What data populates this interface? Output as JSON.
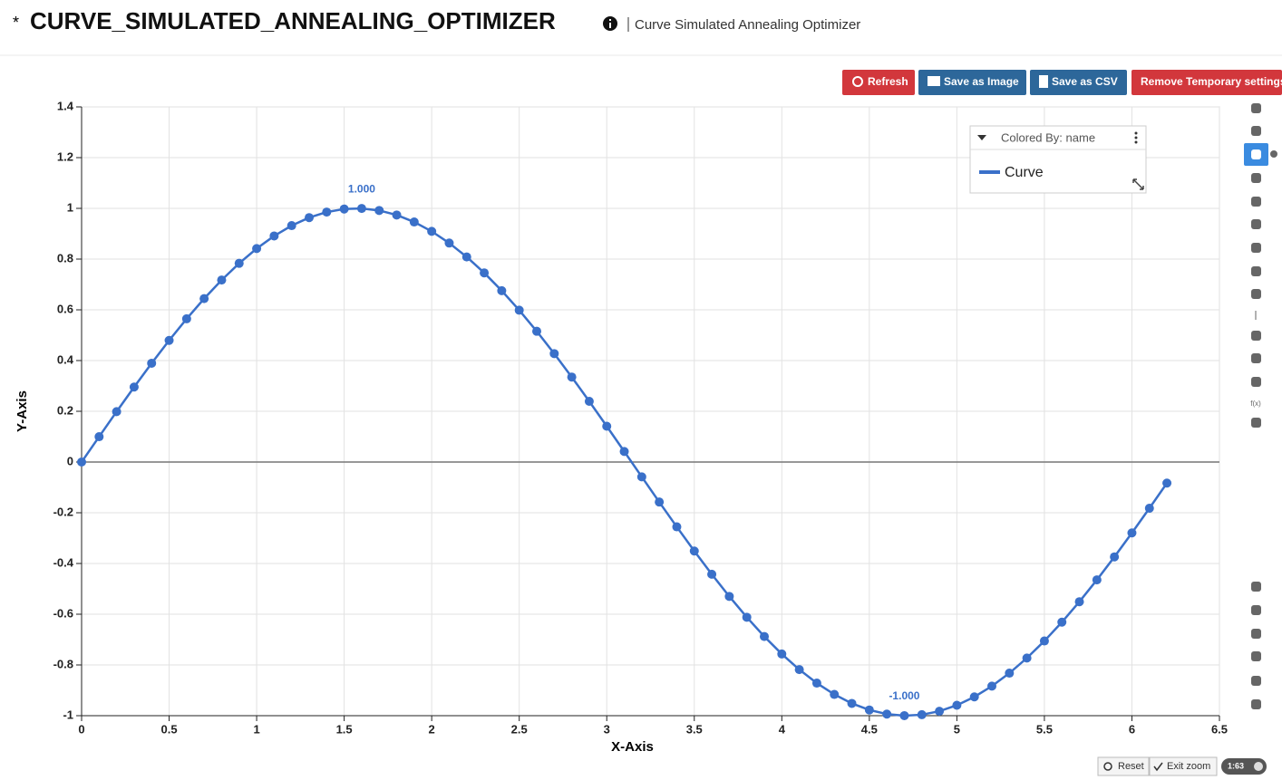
{
  "header": {
    "marker": "*",
    "title": "CURVE_SIMULATED_ANNEALING_OPTIMIZER",
    "subtitle": "Curve Simulated Annealing Optimizer"
  },
  "buttons": [
    "Refresh",
    "Save as Image",
    "Save as CSV",
    "Remove Temporary settings"
  ],
  "toolbar": {
    "fx_label": "f(x)"
  },
  "footer": {
    "reset": "Reset",
    "exit_zoom": "Exit zoom",
    "badge": "1:63"
  },
  "chart_data": {
    "type": "line",
    "x_label": "X-Axis",
    "y_label": "Y-Axis",
    "legend_title": "Colored By: name",
    "legend": "top-right",
    "x": [
      0,
      0.1,
      0.2,
      0.3,
      0.4,
      0.5,
      0.6,
      0.7,
      0.8,
      0.9,
      1,
      1.1,
      1.2,
      1.3,
      1.4,
      1.5,
      1.6,
      1.7,
      1.8,
      1.9,
      2,
      2.1,
      2.2,
      2.3,
      2.4,
      2.5,
      2.6,
      2.7,
      2.8,
      2.9,
      3,
      3.1,
      3.2,
      3.3,
      3.4,
      3.5,
      3.6,
      3.7,
      3.8,
      3.9,
      4,
      4.1,
      4.2,
      4.3,
      4.4,
      4.5,
      4.6,
      4.7,
      4.8,
      4.9,
      5,
      5.1,
      5.2,
      5.3,
      5.4,
      5.5,
      5.6,
      5.7,
      5.8,
      5.9,
      6,
      6.1,
      6.2
    ],
    "series": [
      {
        "name": "Curve",
        "color": "#3a70c9",
        "values": [
          0,
          0.0998,
          0.1987,
          0.2955,
          0.3894,
          0.4794,
          0.5646,
          0.6442,
          0.7174,
          0.7833,
          0.8415,
          0.8912,
          0.932,
          0.9636,
          0.9854,
          0.9975,
          0.9996,
          0.9917,
          0.9738,
          0.9463,
          0.9093,
          0.8632,
          0.8085,
          0.7457,
          0.6755,
          0.5985,
          0.5155,
          0.4274,
          0.335,
          0.2392,
          0.1411,
          0.0416,
          -0.0584,
          -0.1577,
          -0.2555,
          -0.3508,
          -0.4425,
          -0.5298,
          -0.6119,
          -0.6878,
          -0.7568,
          -0.8183,
          -0.8716,
          -0.9162,
          -0.9516,
          -0.9775,
          -0.9937,
          -0.9999,
          -0.9962,
          -0.9825,
          -0.9589,
          -0.9258,
          -0.8835,
          -0.8323,
          -0.7728,
          -0.7055,
          -0.6313,
          -0.5507,
          -0.4646,
          -0.3739,
          -0.2794,
          -0.1822,
          -0.0831
        ],
        "value_labels": [
          null,
          null,
          null,
          null,
          null,
          null,
          null,
          null,
          null,
          null,
          null,
          null,
          null,
          null,
          null,
          null,
          "1.000",
          null,
          null,
          null,
          null,
          null,
          null,
          null,
          null,
          null,
          null,
          null,
          null,
          null,
          null,
          null,
          null,
          null,
          null,
          null,
          null,
          null,
          null,
          null,
          null,
          null,
          null,
          null,
          null,
          null,
          null,
          "-1.000",
          null,
          null,
          null,
          null,
          null,
          null,
          null,
          null,
          null,
          null,
          null,
          null,
          null,
          null,
          null
        ]
      }
    ],
    "xlim": [
      0,
      6.5
    ],
    "xticks": [
      0,
      0.5,
      1,
      1.5,
      2,
      2.5,
      3,
      3.5,
      4,
      4.5,
      5,
      5.5,
      6,
      6.5
    ],
    "ylim": [
      -1,
      1.4
    ],
    "yticks": [
      -1,
      -0.8,
      -0.6,
      -0.4,
      -0.2,
      0,
      0.2,
      0.4,
      0.6,
      0.8,
      1,
      1.2,
      1.4
    ],
    "grid": true
  }
}
